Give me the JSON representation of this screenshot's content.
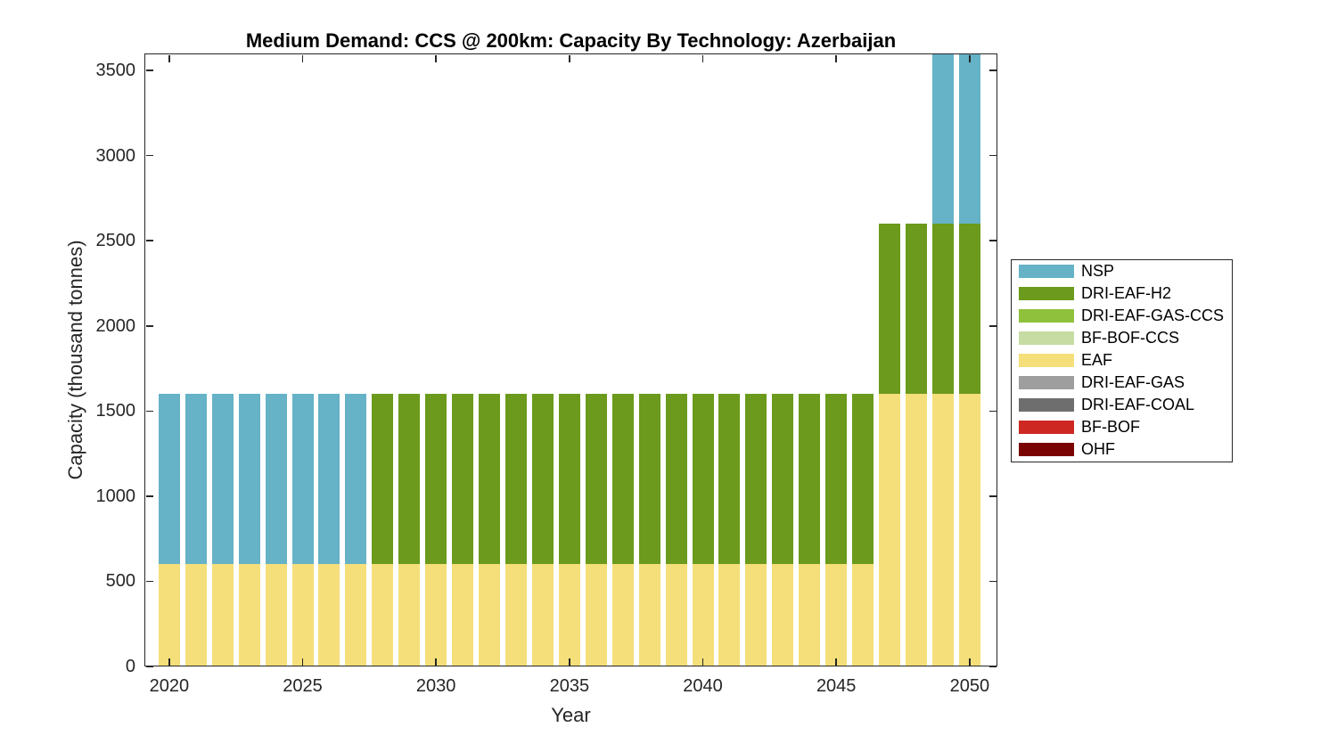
{
  "chart_data": {
    "type": "bar",
    "stacked": true,
    "title": "Medium Demand: CCS @ 200km: Capacity By Technology: Azerbaijan",
    "xlabel": "Year",
    "ylabel": "Capacity (thousand tonnes)",
    "x": [
      2020,
      2021,
      2022,
      2023,
      2024,
      2025,
      2026,
      2027,
      2028,
      2029,
      2030,
      2031,
      2032,
      2033,
      2034,
      2035,
      2036,
      2037,
      2038,
      2039,
      2040,
      2041,
      2042,
      2043,
      2044,
      2045,
      2046,
      2047,
      2048,
      2049,
      2050
    ],
    "xticks": [
      2020,
      2025,
      2030,
      2035,
      2040,
      2045,
      2050
    ],
    "yticks": [
      0,
      500,
      1000,
      1500,
      2000,
      2500,
      3000,
      3500
    ],
    "ylim": [
      0,
      3600
    ],
    "grid": false,
    "legend_position": "right-outside",
    "series": [
      {
        "name": "OHF",
        "color": "#7A0403",
        "values": [
          0,
          0,
          0,
          0,
          0,
          0,
          0,
          0,
          0,
          0,
          0,
          0,
          0,
          0,
          0,
          0,
          0,
          0,
          0,
          0,
          0,
          0,
          0,
          0,
          0,
          0,
          0,
          0,
          0,
          0,
          0
        ]
      },
      {
        "name": "BF-BOF",
        "color": "#CE2823",
        "values": [
          0,
          0,
          0,
          0,
          0,
          0,
          0,
          0,
          0,
          0,
          0,
          0,
          0,
          0,
          0,
          0,
          0,
          0,
          0,
          0,
          0,
          0,
          0,
          0,
          0,
          0,
          0,
          0,
          0,
          0,
          0
        ]
      },
      {
        "name": "DRI-EAF-COAL",
        "color": "#6E6E6E",
        "values": [
          0,
          0,
          0,
          0,
          0,
          0,
          0,
          0,
          0,
          0,
          0,
          0,
          0,
          0,
          0,
          0,
          0,
          0,
          0,
          0,
          0,
          0,
          0,
          0,
          0,
          0,
          0,
          0,
          0,
          0,
          0
        ]
      },
      {
        "name": "DRI-EAF-GAS",
        "color": "#9E9E9E",
        "values": [
          0,
          0,
          0,
          0,
          0,
          0,
          0,
          0,
          0,
          0,
          0,
          0,
          0,
          0,
          0,
          0,
          0,
          0,
          0,
          0,
          0,
          0,
          0,
          0,
          0,
          0,
          0,
          0,
          0,
          0,
          0
        ]
      },
      {
        "name": "EAF",
        "color": "#F5DF7A",
        "values": [
          600,
          600,
          600,
          600,
          600,
          600,
          600,
          600,
          600,
          600,
          600,
          600,
          600,
          600,
          600,
          600,
          600,
          600,
          600,
          600,
          600,
          600,
          600,
          600,
          600,
          600,
          600,
          1600,
          1600,
          1600,
          1600
        ]
      },
      {
        "name": "BF-BOF-CCS",
        "color": "#C6DCA2",
        "values": [
          0,
          0,
          0,
          0,
          0,
          0,
          0,
          0,
          0,
          0,
          0,
          0,
          0,
          0,
          0,
          0,
          0,
          0,
          0,
          0,
          0,
          0,
          0,
          0,
          0,
          0,
          0,
          0,
          0,
          0,
          0
        ]
      },
      {
        "name": "DRI-EAF-GAS-CCS",
        "color": "#8FC13D",
        "values": [
          0,
          0,
          0,
          0,
          0,
          0,
          0,
          0,
          0,
          0,
          0,
          0,
          0,
          0,
          0,
          0,
          0,
          0,
          0,
          0,
          0,
          0,
          0,
          0,
          0,
          0,
          0,
          0,
          0,
          0,
          0
        ]
      },
      {
        "name": "DRI-EAF-H2",
        "color": "#6B9A1C",
        "values": [
          0,
          0,
          0,
          0,
          0,
          0,
          0,
          0,
          1000,
          1000,
          1000,
          1000,
          1000,
          1000,
          1000,
          1000,
          1000,
          1000,
          1000,
          1000,
          1000,
          1000,
          1000,
          1000,
          1000,
          1000,
          1000,
          1000,
          1000,
          1000,
          1000
        ]
      },
      {
        "name": "NSP",
        "color": "#66B2C6",
        "values": [
          1000,
          1000,
          1000,
          1000,
          1000,
          1000,
          1000,
          1000,
          0,
          0,
          0,
          0,
          0,
          0,
          0,
          0,
          0,
          0,
          0,
          0,
          0,
          0,
          0,
          0,
          0,
          0,
          0,
          0,
          0,
          1000,
          1000
        ]
      }
    ],
    "legend": {
      "items": [
        {
          "label": "NSP",
          "color": "#66B2C6"
        },
        {
          "label": "DRI-EAF-H2",
          "color": "#6B9A1C"
        },
        {
          "label": "DRI-EAF-GAS-CCS",
          "color": "#8FC13D"
        },
        {
          "label": "BF-BOF-CCS",
          "color": "#C6DCA2"
        },
        {
          "label": "EAF",
          "color": "#F5DF7A"
        },
        {
          "label": "DRI-EAF-GAS",
          "color": "#9E9E9E"
        },
        {
          "label": "DRI-EAF-COAL",
          "color": "#6E6E6E"
        },
        {
          "label": "BF-BOF",
          "color": "#CE2823"
        },
        {
          "label": "OHF",
          "color": "#7A0403"
        }
      ]
    }
  }
}
